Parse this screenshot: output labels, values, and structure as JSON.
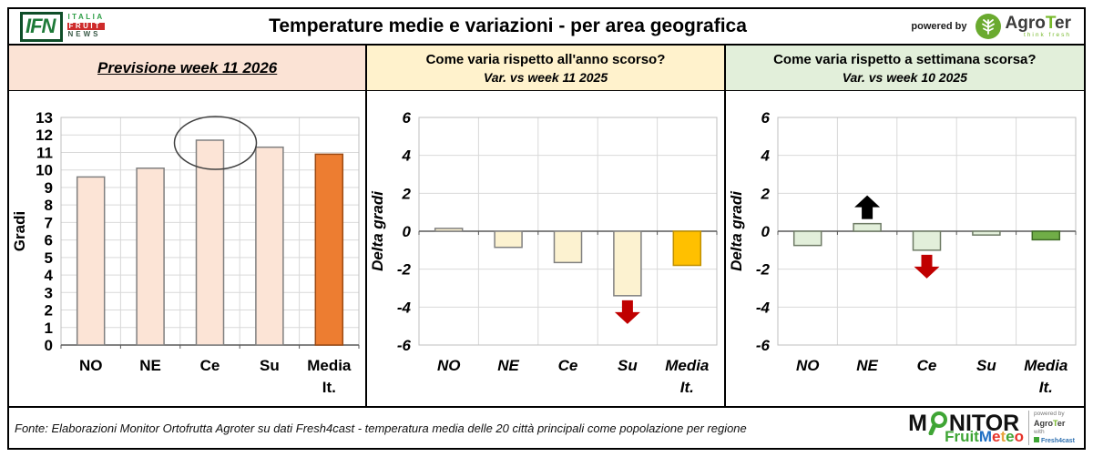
{
  "header": {
    "ifn_acronym": "IFN",
    "ifn_italia": "ITALIA",
    "ifn_fruit": "FRUIT",
    "ifn_news": "NEWS",
    "title": "Temperature medie e variazioni - per area geografica",
    "powered_by": "powered by",
    "agroter_agro": "Agro",
    "agroter_t": "T",
    "agroter_er": "er",
    "agroter_tagline": "think fresh"
  },
  "panels": [
    {
      "title": "Previsione week 11 2026",
      "header_bg": "#FBE3D5"
    },
    {
      "title": "Come varia rispetto all'anno scorso?",
      "subtitle": "Var. vs week 11 2025",
      "header_bg": "#FFF2CC"
    },
    {
      "title": "Come varia rispetto a settimana scorsa?",
      "subtitle": "Var. vs week 10 2025",
      "header_bg": "#E2EFDA"
    }
  ],
  "chart_data": [
    {
      "type": "bar",
      "title": "Previsione week 11 2026",
      "ylabel": "Gradi",
      "categories": [
        "NO",
        "NE",
        "Ce",
        "Su",
        "Media It."
      ],
      "values": [
        9.6,
        10.1,
        11.7,
        11.3,
        10.9
      ],
      "ylim": [
        0,
        13
      ],
      "ytick_step": 1,
      "italic": false,
      "grid": true,
      "legend": false,
      "bar_fill": "#FCE4D6",
      "bar_border": "#808080",
      "highlight_index": 4,
      "highlight_fill": "#ED7D31",
      "highlight_border": "#9C4A12",
      "annotations": [
        {
          "type": "ellipse",
          "category": "Ce",
          "color": "#404040"
        }
      ]
    },
    {
      "type": "bar",
      "title": "Var. vs week 11 2025",
      "ylabel": "Delta gradi",
      "categories": [
        "NO",
        "NE",
        "Ce",
        "Su",
        "Media It."
      ],
      "values": [
        0.15,
        -0.85,
        -1.65,
        -3.4,
        -1.8
      ],
      "ylim": [
        -6,
        6
      ],
      "ytick_step": 2,
      "italic": true,
      "grid": true,
      "legend": false,
      "bar_fill": "#FCF2D0",
      "bar_border": "#808080",
      "highlight_index": 4,
      "highlight_fill": "#FFC000",
      "highlight_border": "#BF8F00",
      "annotations": [
        {
          "type": "arrow",
          "category": "Su",
          "dir": "down",
          "color": "#C00000"
        }
      ]
    },
    {
      "type": "bar",
      "title": "Var. vs week 10 2025",
      "ylabel": "Delta gradi",
      "categories": [
        "NO",
        "NE",
        "Ce",
        "Su",
        "Media It."
      ],
      "values": [
        -0.75,
        0.4,
        -1.0,
        -0.2,
        -0.45
      ],
      "ylim": [
        -6,
        6
      ],
      "ytick_step": 2,
      "italic": true,
      "grid": true,
      "legend": false,
      "bar_fill": "#E2EFDA",
      "bar_border": "#6E7B65",
      "highlight_index": 4,
      "highlight_fill": "#70AD47",
      "highlight_border": "#3E6B25",
      "annotations": [
        {
          "type": "arrow",
          "category": "NE",
          "dir": "up",
          "color": "#000000"
        },
        {
          "type": "arrow",
          "category": "Ce",
          "dir": "down",
          "color": "#C00000"
        }
      ]
    }
  ],
  "footer": {
    "fonte": "Fonte: Elaborazioni Monitor Ortofrutta Agroter su dati Fresh4cast - temperatura media delle 20 città principali come popolazione per regione",
    "monitor_m": "M",
    "monitor_rest": "NITOR",
    "fruitmeteo_segments": [
      [
        "Fruit",
        "#3FA535"
      ],
      [
        "M",
        "#1F6FC4"
      ],
      [
        "e",
        "#E63329"
      ],
      [
        "t",
        "#E8A33D"
      ],
      [
        "e",
        "#3FA535"
      ],
      [
        "o",
        "#E63329"
      ]
    ],
    "powered_by": "powered by",
    "agroter_agro": "Agro",
    "agroter_t": "T",
    "agroter_er": "er",
    "with_label": "with",
    "fresh": "Fresh4cast"
  }
}
